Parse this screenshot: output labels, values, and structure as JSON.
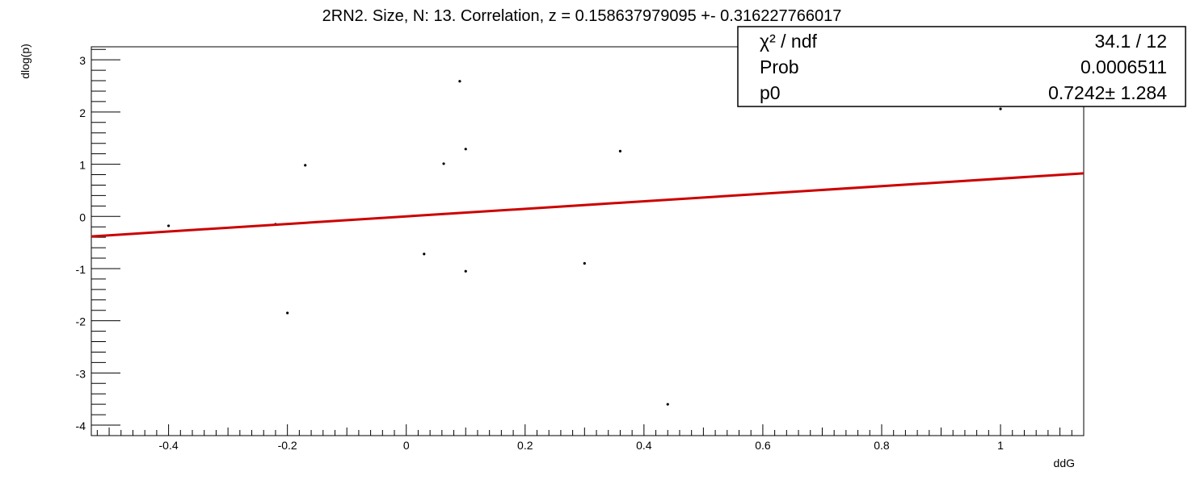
{
  "chart_data": {
    "type": "scatter",
    "title": "2RN2. Size, N: 13. Correlation, z = 0.158637979095 +- 0.316227766017",
    "xlabel": "ddG",
    "ylabel": "dlog(p)",
    "xlim": [
      -0.53,
      1.14
    ],
    "ylim": [
      -4.2,
      3.25
    ],
    "x_ticks": [
      -0.4,
      -0.2,
      0,
      0.2,
      0.4,
      0.6,
      0.8,
      1
    ],
    "x_tick_labels": [
      "-0.4",
      "-0.2",
      "0",
      "0.2",
      "0.4",
      "0.6",
      "0.8",
      "1"
    ],
    "y_ticks": [
      -4,
      -3,
      -2,
      -1,
      0,
      1,
      2,
      3
    ],
    "y_tick_labels": [
      "-4",
      "-3",
      "-2",
      "-1",
      "0",
      "1",
      "2",
      "3"
    ],
    "grid": false,
    "series": [
      {
        "kind": "points",
        "color": "#000000",
        "x": [
          -0.4,
          -0.22,
          -0.2,
          -0.17,
          0.03,
          0.063,
          0.09,
          0.1,
          0.1,
          0.3,
          0.36,
          0.44,
          1.0
        ],
        "y": [
          -0.18,
          -0.15,
          -1.85,
          0.98,
          -0.72,
          1.01,
          2.59,
          1.29,
          -1.05,
          -0.9,
          1.25,
          -3.6,
          2.06
        ]
      },
      {
        "kind": "fit-line",
        "color": "#cc0000",
        "slope": 0.7242,
        "x": [
          -0.53,
          1.14
        ]
      }
    ],
    "stats_box": {
      "placement": "top-right",
      "rows": [
        {
          "label": "χ² / ndf",
          "value": "34.1 / 12"
        },
        {
          "label": "Prob",
          "value": "0.0006511"
        },
        {
          "label": "p0",
          "value": "0.7242± 1.284"
        }
      ]
    }
  }
}
